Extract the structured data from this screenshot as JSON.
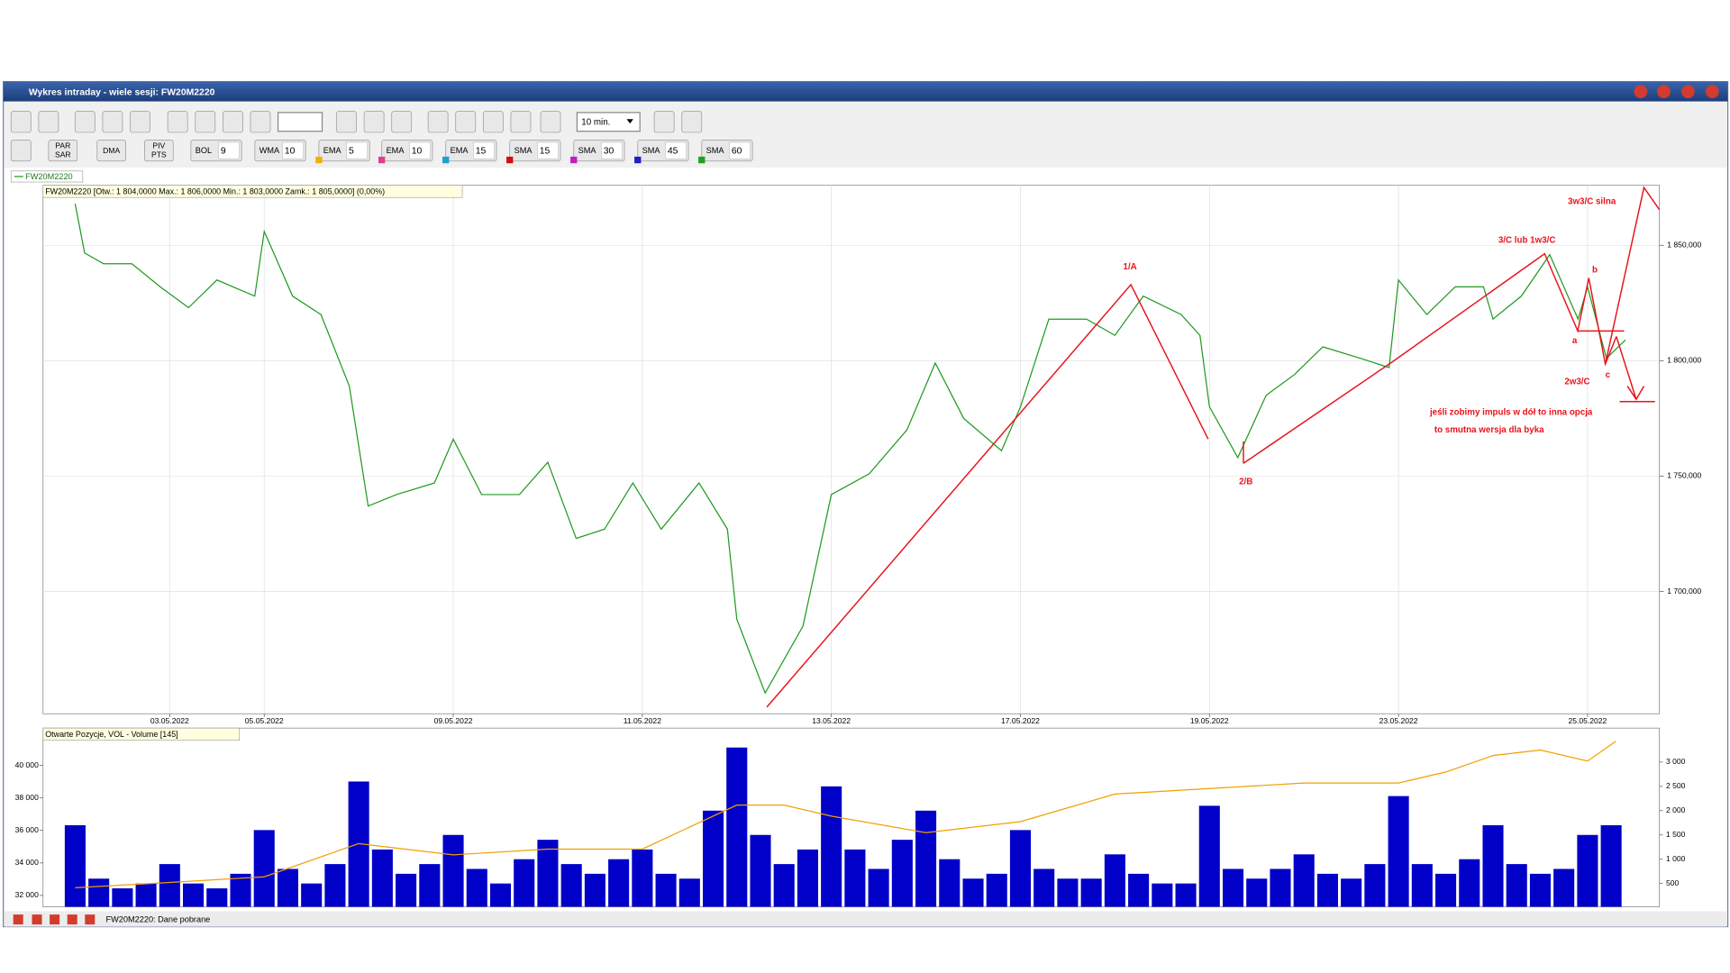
{
  "window": {
    "title": "Wykres intraday -  wiele sesji: FW20M2220",
    "status": "FW20M2220: Dane pobrane"
  },
  "toolbar": {
    "interval": "10 min.",
    "buttons": [
      [
        "PAR",
        "SAR"
      ],
      [
        "DMA"
      ],
      [
        "PIV",
        "PTS"
      ]
    ],
    "indicators": [
      {
        "name": "BOL",
        "value": "9"
      },
      {
        "name": "WMA",
        "value": "10"
      },
      {
        "name": "EMA",
        "value": "5"
      },
      {
        "name": "EMA",
        "value": "10"
      },
      {
        "name": "EMA",
        "value": "15"
      },
      {
        "name": "SMA",
        "value": "15"
      },
      {
        "name": "SMA",
        "value": "30"
      },
      {
        "name": "SMA",
        "value": "45"
      },
      {
        "name": "SMA",
        "value": "60"
      }
    ]
  },
  "chart_data": [
    {
      "type": "line",
      "title": "FW20M2220 [Otw.: 1 804,0000  Max.: 1 806,0000  Min.: 1 803,0000  Zamk.: 1 805,0000] (0,00%)",
      "x": [
        0,
        0.1,
        0.3,
        0.6,
        0.9,
        1.2,
        1.5,
        1.9,
        2.0,
        2.3,
        2.6,
        2.9,
        3.1,
        3.4,
        3.8,
        4.0,
        4.3,
        4.7,
        5.0,
        5.3,
        5.6,
        5.9,
        6.2,
        6.6,
        6.9,
        7.0,
        7.3,
        7.7,
        8.0,
        8.4,
        8.8,
        9.1,
        9.4,
        9.8,
        10.0,
        10.3,
        10.7,
        11.0,
        11.3,
        11.7,
        11.9,
        12.0,
        12.3,
        12.6,
        12.9,
        13.2,
        13.6,
        13.9,
        14.0,
        14.3,
        14.6,
        14.9,
        15.0,
        15.3,
        15.6,
        15.9,
        16.0,
        16.2,
        16.4
      ],
      "series": [
        {
          "name": "FW20M2220",
          "color": "#1f9a1f",
          "values": [
            1868000,
            1846700,
            1842000,
            1842000,
            1832000,
            1823000,
            1835000,
            1828000,
            1856000,
            1828000,
            1820000,
            1789000,
            1737000,
            1742000,
            1747000,
            1766000,
            1742000,
            1742000,
            1756000,
            1723000,
            1727000,
            1747000,
            1727000,
            1747000,
            1727000,
            1688000,
            1656000,
            1685000,
            1742000,
            1751000,
            1770000,
            1799000,
            1775000,
            1761000,
            1780000,
            1818000,
            1818000,
            1811000,
            1828000,
            1820000,
            1811000,
            1780000,
            1758000,
            1785000,
            1794000,
            1806000,
            1801000,
            1797000,
            1835000,
            1820000,
            1832000,
            1832000,
            1818000,
            1828000,
            1846000,
            1818000,
            1832000,
            1801000,
            1809000
          ]
        }
      ],
      "xlim": [
        -0.34,
        16.76
      ],
      "xticks": [
        {
          "value": 1,
          "label": "03.05.2022"
        },
        {
          "value": 2,
          "label": "05.05.2022"
        },
        {
          "value": 4,
          "label": "09.05.2022"
        },
        {
          "value": 6,
          "label": "11.05.2022"
        },
        {
          "value": 8,
          "label": "13.05.2022"
        },
        {
          "value": 10,
          "label": "17.05.2022"
        },
        {
          "value": 12,
          "label": "19.05.2022"
        },
        {
          "value": 14,
          "label": "23.05.2022"
        },
        {
          "value": 16,
          "label": "25.05.2022"
        }
      ],
      "ylim": [
        1647000,
        1876000
      ],
      "yticks": [
        {
          "value": 1700000,
          "label": "1 700,000"
        },
        {
          "value": 1750000,
          "label": "1 750,000"
        },
        {
          "value": 1800000,
          "label": "1 800,000"
        },
        {
          "value": 1850000,
          "label": "1 850,000"
        }
      ],
      "grid": true,
      "annotations": [
        "1/A",
        "2/B",
        "3/C lub 1w3/C",
        "3w3/C silna",
        "a",
        "b",
        "c",
        "2w3/C",
        "jeśli zobimy impuls w dół to inna opcja",
        "to smutna wersja dla byka"
      ]
    },
    {
      "type": "combo",
      "title": "Otwarte Pozycje, VOL - Volume [145]",
      "xlim": [
        -0.34,
        16.76
      ],
      "ylim": [
        31300,
        42300
      ],
      "yticks": [
        {
          "value": 32000,
          "label": "32 000"
        },
        {
          "value": 34000,
          "label": "34 000"
        },
        {
          "value": 36000,
          "label": "36 000"
        },
        {
          "value": 38000,
          "label": "38 000"
        },
        {
          "value": 40000,
          "label": "40 000"
        }
      ],
      "y2lim": [
        20,
        3700
      ],
      "y2ticks": [
        500,
        {
          "value": 1000,
          "label": "1 000"
        },
        {
          "value": 1500,
          "label": "1 500"
        },
        {
          "value": 2000,
          "label": "2 000"
        },
        {
          "value": 2500,
          "label": "2 500"
        },
        {
          "value": 3000,
          "label": "3 000"
        }
      ],
      "series": [
        {
          "type": "bar",
          "axis": "y2",
          "color": "#0000c8",
          "x": [
            0,
            0.25,
            0.5,
            0.75,
            1,
            1.25,
            1.5,
            1.75,
            2,
            2.25,
            2.5,
            2.75,
            3,
            3.25,
            3.5,
            3.75,
            4,
            4.25,
            4.5,
            4.75,
            5,
            5.25,
            5.5,
            5.75,
            6,
            6.25,
            6.5,
            6.75,
            7,
            7.25,
            7.5,
            7.75,
            8,
            8.25,
            8.5,
            8.75,
            9,
            9.25,
            9.5,
            9.75,
            10,
            10.25,
            10.5,
            10.75,
            11,
            11.25,
            11.5,
            11.75,
            12,
            12.25,
            12.5,
            12.75,
            13,
            13.25,
            13.5,
            13.75,
            14,
            14.25,
            14.5,
            14.75,
            15,
            15.25,
            15.5,
            15.75,
            16,
            16.25
          ],
          "values": [
            1700,
            600,
            400,
            500,
            900,
            500,
            400,
            700,
            1600,
            800,
            500,
            900,
            2600,
            1200,
            700,
            900,
            1500,
            800,
            500,
            1000,
            1400,
            900,
            700,
            1000,
            1200,
            700,
            600,
            2000,
            3300,
            1500,
            900,
            1200,
            2500,
            1200,
            800,
            1400,
            2000,
            1000,
            600,
            700,
            1600,
            800,
            600,
            600,
            1100,
            700,
            500,
            500,
            2100,
            800,
            600,
            800,
            1100,
            700,
            600,
            900,
            2300,
            900,
            700,
            1000,
            1700,
            900,
            700,
            800,
            1500,
            1700
          ]
        },
        {
          "type": "line",
          "color": "#f0a000",
          "x": [
            0,
            1,
            2,
            3,
            4,
            5,
            6,
            7,
            7.5,
            8,
            9,
            10,
            11,
            12,
            13,
            14,
            14.5,
            15,
            15.5,
            16,
            16.3
          ],
          "values": [
            32475,
            32800,
            33150,
            35190,
            34500,
            34850,
            34850,
            37560,
            37560,
            36880,
            35860,
            36540,
            38240,
            38580,
            38920,
            38920,
            39600,
            40610,
            40950,
            40270,
            41490
          ]
        }
      ]
    }
  ]
}
